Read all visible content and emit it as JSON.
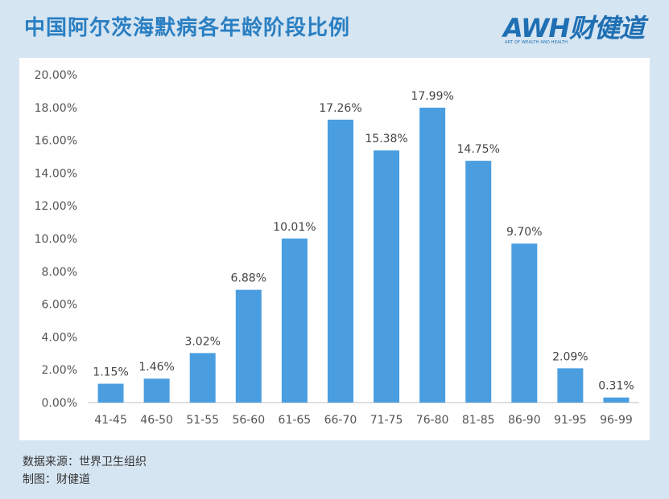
{
  "header": {
    "title": "中国阿尔茨海默病各年龄阶段比例",
    "logo_text": "AWH财健道",
    "logo_tagline": "ART OF WEALTH AND HEALTH"
  },
  "footer": {
    "source": "数据来源：世界卫生组织",
    "author": "制图：财健道"
  },
  "colors": {
    "background": "#d6e5f2",
    "bar": "#4a9ee0",
    "title": "#2a7fc2"
  },
  "chart_data": {
    "type": "bar",
    "title": "",
    "xlabel": "",
    "ylabel": "",
    "ylim": [
      0,
      20
    ],
    "yticks": [
      "0.00%",
      "2.00%",
      "4.00%",
      "6.00%",
      "8.00%",
      "10.00%",
      "12.00%",
      "14.00%",
      "16.00%",
      "18.00%",
      "20.00%"
    ],
    "grid": false,
    "categories": [
      "41-45",
      "46-50",
      "51-55",
      "56-60",
      "61-65",
      "66-70",
      "71-75",
      "76-80",
      "81-85",
      "86-90",
      "91-95",
      "96-99"
    ],
    "values": [
      1.15,
      1.46,
      3.02,
      6.88,
      10.01,
      17.26,
      15.38,
      17.99,
      14.75,
      9.7,
      2.09,
      0.31
    ],
    "data_labels": [
      "1.15%",
      "1.46%",
      "3.02%",
      "6.88%",
      "10.01%",
      "17.26%",
      "15.38%",
      "17.99%",
      "14.75%",
      "9.70%",
      "2.09%",
      "0.31%"
    ]
  }
}
